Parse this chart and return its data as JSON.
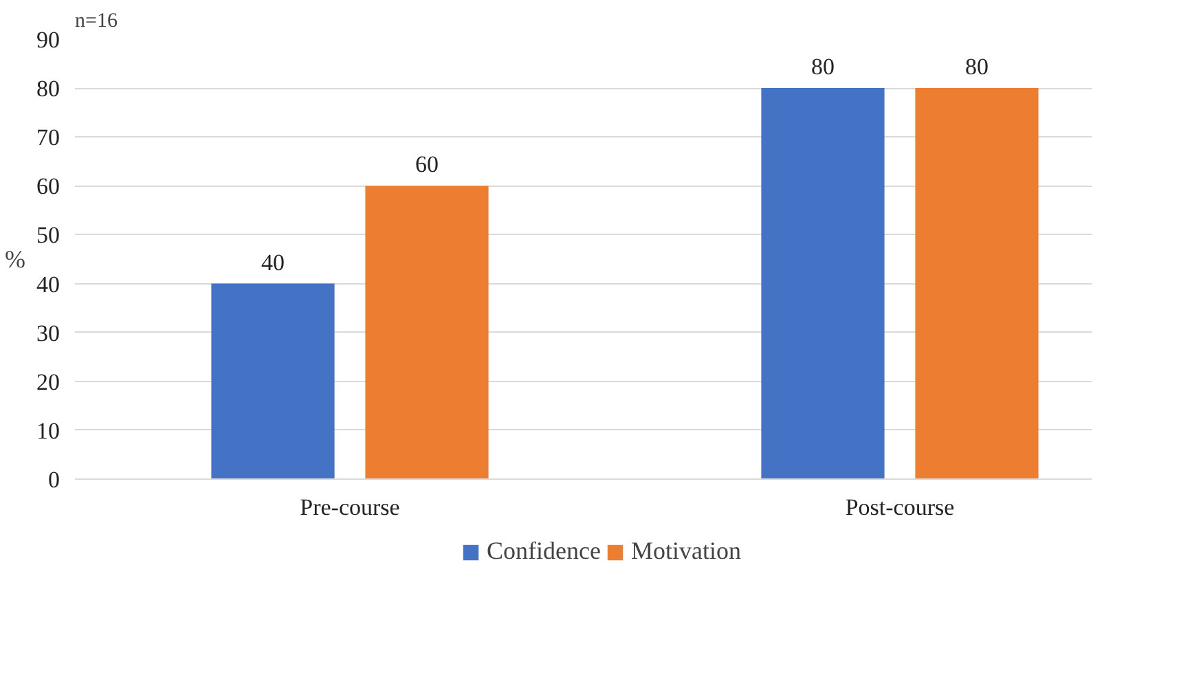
{
  "chart_data": {
    "type": "bar",
    "categories": [
      "Pre-course",
      "Post-course"
    ],
    "series": [
      {
        "name": "Confidence",
        "color": "#4472c4",
        "values": [
          40,
          80
        ]
      },
      {
        "name": "Motivation",
        "color": "#ed7d31",
        "values": [
          60,
          80
        ]
      }
    ],
    "ylabel": "%",
    "ylim": [
      0,
      90
    ],
    "yticks": [
      0,
      10,
      20,
      30,
      40,
      50,
      60,
      70,
      80,
      90
    ],
    "grid": "y",
    "legend": "bottom",
    "data_labels": true,
    "annotations": [
      "n=16"
    ]
  }
}
